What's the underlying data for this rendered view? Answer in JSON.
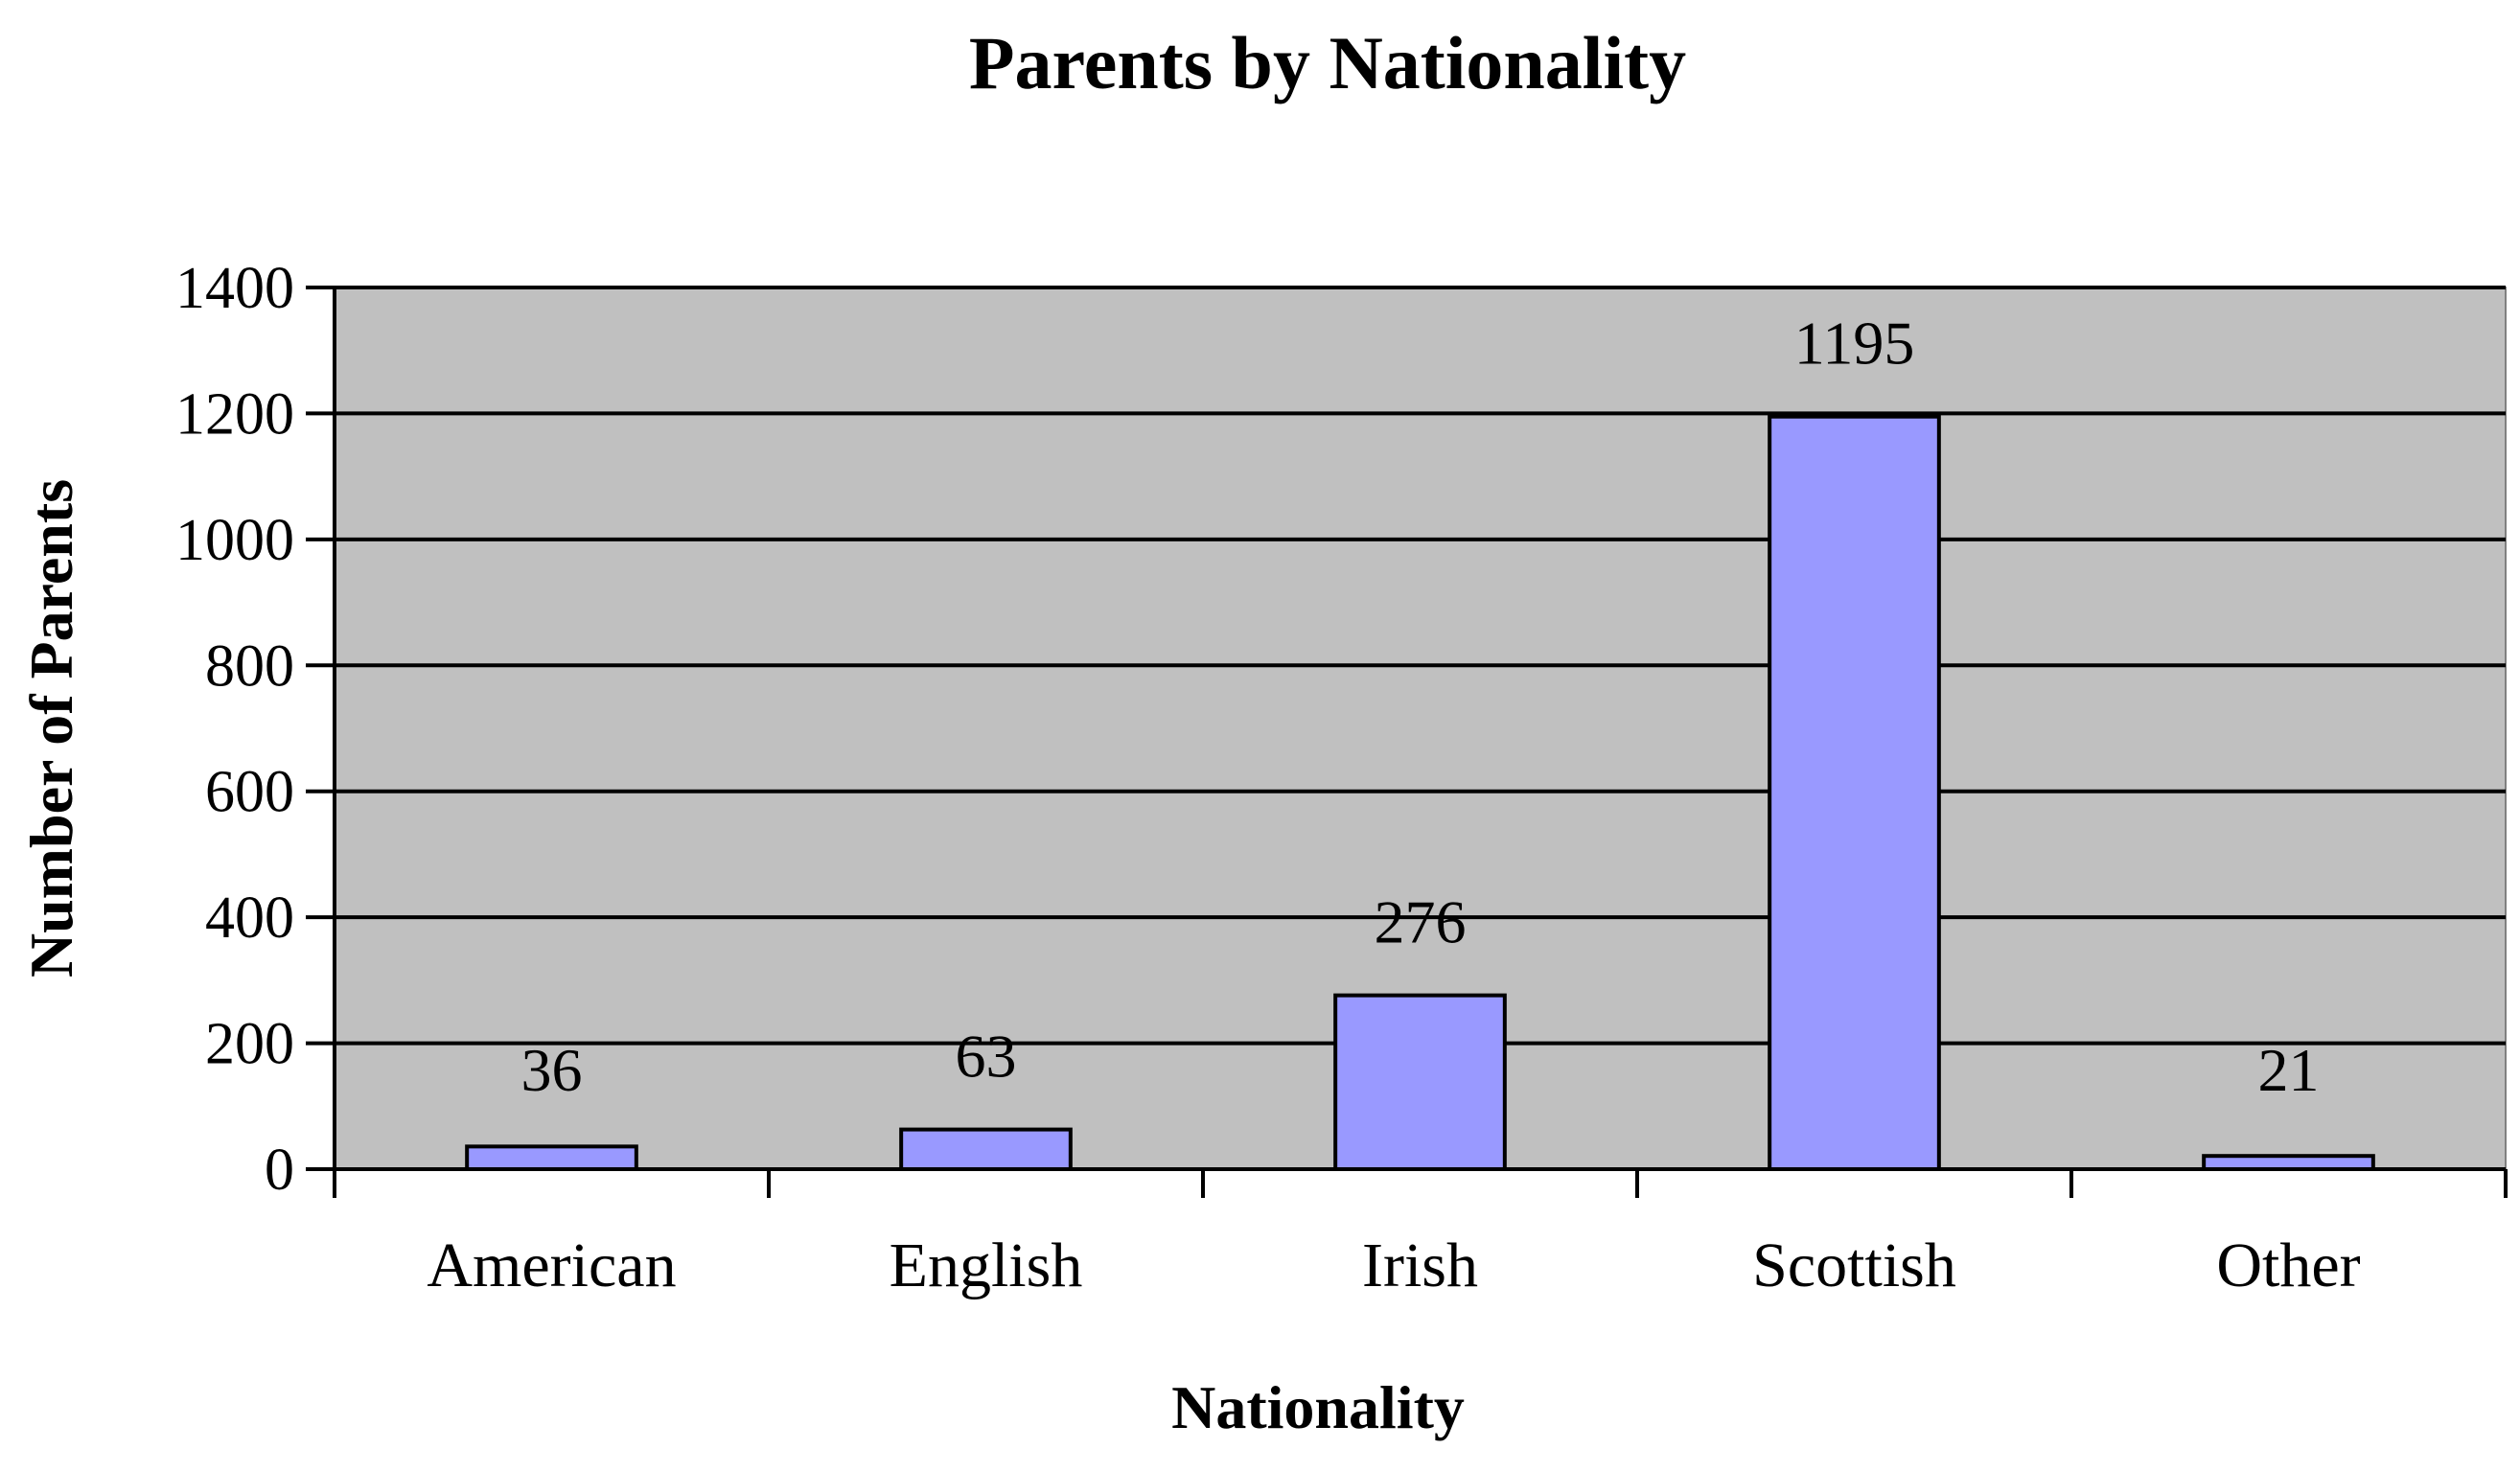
{
  "chart_data": {
    "type": "bar",
    "title": "Parents by Nationality",
    "xlabel": "Nationality",
    "ylabel": "Number of Parents",
    "categories": [
      "American",
      "English",
      "Irish",
      "Scottish",
      "Other"
    ],
    "values": [
      36,
      63,
      276,
      1195,
      21
    ],
    "data_labels": [
      "36",
      "63",
      "276",
      "1195",
      "21"
    ],
    "ylim": [
      0,
      1400
    ],
    "yticks": [
      0,
      200,
      400,
      600,
      800,
      1000,
      1200,
      1400
    ],
    "ytick_labels": [
      "0",
      "200",
      "400",
      "600",
      "800",
      "1000",
      "1200",
      "1400"
    ],
    "grid": true,
    "legend": "none",
    "colors": {
      "bar_fill": "#9999ff",
      "bar_stroke": "#000000",
      "plot_background": "#c0c0c0",
      "gridline": "#000000"
    }
  }
}
